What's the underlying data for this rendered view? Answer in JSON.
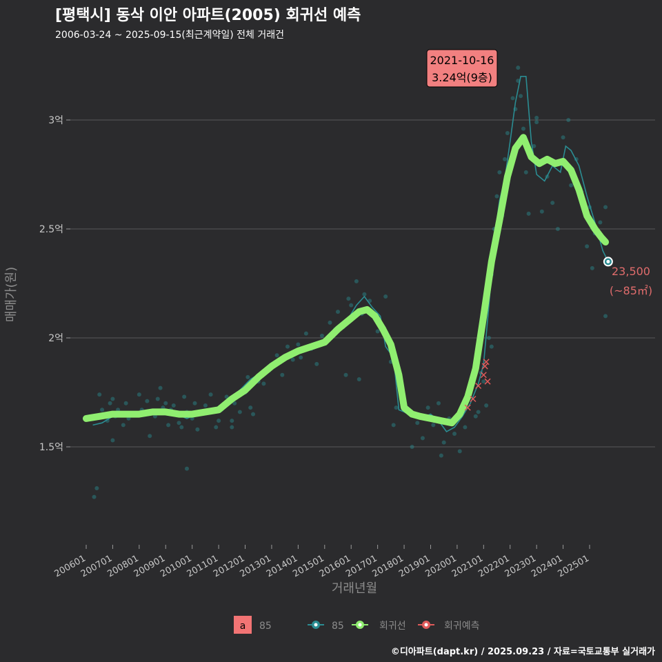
{
  "header": {
    "title": "[평택시] 동삭 이안 아파트(2005) 회귀선 예측",
    "subtitle": "2006-03-24 ~ 2025-09-15(최근계약일) 전체 거래건",
    "caption": "©디아파트(dapt.kr) / 2025.09.23 / 자료=국토교통부 실거래가"
  },
  "chart_data": {
    "type": "line",
    "xlabel": "거래년월",
    "ylabel": "매매가(원)",
    "x_ticks": [
      "200601",
      "200701",
      "200801",
      "200901",
      "201001",
      "201101",
      "201201",
      "201301",
      "201401",
      "201501",
      "201601",
      "201701",
      "201801",
      "201901",
      "202001",
      "202101",
      "202201",
      "202301",
      "202401",
      "202501"
    ],
    "y_ticks": [
      {
        "value": 15000,
        "label": "1.5억"
      },
      {
        "value": 20000,
        "label": "2억"
      },
      {
        "value": 25000,
        "label": "2.5억"
      },
      {
        "value": 30000,
        "label": "3억"
      }
    ],
    "ylim": [
      11000,
      34000
    ],
    "xlim": [
      2005.75,
      2026.0
    ],
    "grid": "horizontal",
    "legend_position": "bottom",
    "colors": {
      "area85": "#2b8d93",
      "regression": "#90ee70",
      "forecast": "#e05a5a",
      "badge": "#f28080"
    },
    "series": [
      {
        "name": "85",
        "kind": "line",
        "x": [
          2006.25,
          2006.6,
          2007.0,
          2007.5,
          2008.0,
          2008.5,
          2009.0,
          2009.4,
          2009.8,
          2010.2,
          2010.6,
          2011.0,
          2011.4,
          2011.8,
          2012.2,
          2012.6,
          2013.0,
          2013.4,
          2013.8,
          2014.2,
          2014.6,
          2015.0,
          2015.4,
          2015.8,
          2016.2,
          2016.5,
          2016.8,
          2017.1,
          2017.3,
          2017.6,
          2017.8,
          2018.0,
          2018.3,
          2018.6,
          2019.0,
          2019.3,
          2019.6,
          2019.9,
          2020.2,
          2020.5,
          2020.8,
          2021.0,
          2021.2,
          2021.4,
          2021.6,
          2021.8,
          2022.0,
          2022.2,
          2022.4,
          2022.6,
          2022.8,
          2023.0,
          2023.3,
          2023.6,
          2023.9,
          2024.1,
          2024.3,
          2024.6,
          2024.9,
          2025.2,
          2025.5,
          2025.7
        ],
        "y": [
          16000,
          16100,
          16400,
          16500,
          16500,
          16600,
          16700,
          16500,
          16300,
          16500,
          16600,
          16800,
          17200,
          17600,
          18100,
          18400,
          18700,
          19000,
          19200,
          19400,
          19500,
          19700,
          20200,
          20700,
          21500,
          21900,
          21400,
          21000,
          19600,
          19100,
          16700,
          16600,
          16400,
          16300,
          16500,
          16200,
          15700,
          15900,
          16400,
          17000,
          17900,
          18800,
          21500,
          24500,
          26300,
          27300,
          29000,
          30800,
          32000,
          32000,
          29000,
          27500,
          27200,
          27900,
          27600,
          28800,
          28600,
          27900,
          26500,
          25300,
          24000,
          23500
        ]
      },
      {
        "name": "회귀선",
        "kind": "line",
        "x": [
          2006.0,
          2006.5,
          2007.0,
          2007.5,
          2008.0,
          2008.5,
          2009.0,
          2009.5,
          2010.0,
          2010.5,
          2011.0,
          2011.5,
          2012.0,
          2012.5,
          2013.0,
          2013.5,
          2014.0,
          2014.5,
          2015.0,
          2015.5,
          2016.0,
          2016.3,
          2016.6,
          2016.9,
          2017.2,
          2017.5,
          2017.8,
          2018.0,
          2018.3,
          2018.6,
          2019.0,
          2019.4,
          2019.8,
          2020.1,
          2020.4,
          2020.7,
          2021.0,
          2021.3,
          2021.6,
          2021.9,
          2022.2,
          2022.5,
          2022.8,
          2023.1,
          2023.4,
          2023.7,
          2024.0,
          2024.3,
          2024.6,
          2024.9,
          2025.2,
          2025.45,
          2025.6
        ],
        "y": [
          16300,
          16400,
          16500,
          16500,
          16500,
          16600,
          16600,
          16500,
          16500,
          16600,
          16700,
          17200,
          17600,
          18200,
          18700,
          19100,
          19400,
          19600,
          19800,
          20400,
          20900,
          21200,
          21300,
          21000,
          20400,
          19700,
          18300,
          16800,
          16500,
          16400,
          16300,
          16200,
          16100,
          16500,
          17300,
          18600,
          21000,
          23500,
          25400,
          27400,
          28700,
          29200,
          28300,
          28000,
          28200,
          28000,
          28100,
          27700,
          26800,
          25600,
          25000,
          24600,
          24400
        ]
      },
      {
        "name": "회귀예측",
        "kind": "points",
        "x": [
          2020.4,
          2020.6,
          2020.8,
          2021.0,
          2021.05,
          2021.1,
          2021.15
        ],
        "y": [
          16800,
          17200,
          17800,
          18300,
          18700,
          18900,
          18000
        ]
      }
    ],
    "scatter_85": {
      "x": [
        2006.3,
        2006.5,
        2006.6,
        2006.8,
        2006.9,
        2007.0,
        2007.1,
        2007.2,
        2007.4,
        2007.5,
        2007.6,
        2007.8,
        2008.0,
        2008.1,
        2008.3,
        2008.4,
        2008.6,
        2008.7,
        2008.9,
        2009.0,
        2009.1,
        2009.2,
        2009.3,
        2009.5,
        2009.6,
        2009.7,
        2009.8,
        2010.0,
        2010.1,
        2010.2,
        2010.3,
        2010.5,
        2010.7,
        2010.9,
        2011.0,
        2011.1,
        2011.3,
        2011.5,
        2011.6,
        2011.8,
        2012.0,
        2012.1,
        2012.3,
        2012.5,
        2012.7,
        2012.9,
        2013.0,
        2013.2,
        2013.4,
        2013.6,
        2013.8,
        2014.0,
        2014.1,
        2014.3,
        2014.5,
        2014.7,
        2014.9,
        2015.0,
        2015.2,
        2015.4,
        2015.5,
        2015.7,
        2015.9,
        2016.0,
        2016.2,
        2016.4,
        2016.5,
        2016.7,
        2016.9,
        2017.0,
        2017.3,
        2017.5,
        2017.7,
        2018.0,
        2018.3,
        2018.5,
        2018.7,
        2018.9,
        2019.1,
        2019.3,
        2019.5,
        2019.7,
        2019.9,
        2020.1,
        2020.3,
        2020.5,
        2020.7,
        2020.9,
        2021.0,
        2021.1,
        2021.2,
        2021.3,
        2021.4,
        2021.5,
        2021.6,
        2021.7,
        2021.8,
        2021.9,
        2022.0,
        2022.1,
        2022.2,
        2022.3,
        2022.4,
        2022.5,
        2022.6,
        2022.7,
        2022.9,
        2023.0,
        2023.2,
        2023.4,
        2023.6,
        2023.8,
        2024.0,
        2024.2,
        2024.3,
        2024.5,
        2024.7,
        2024.9,
        2025.0,
        2025.2,
        2025.4,
        2025.6,
        2006.4,
        2007.0,
        2009.8,
        2010.3,
        2008.8,
        2011.5,
        2012.2,
        2014.0,
        2015.8,
        2016.3,
        2017.6,
        2019.4,
        2020.8,
        2021.3,
        2022.3,
        2023.0,
        2025.6,
        2025.1
      ],
      "y": [
        12700,
        17400,
        16700,
        16200,
        17000,
        17200,
        16400,
        16700,
        16000,
        17000,
        16300,
        16500,
        17400,
        16700,
        17100,
        15500,
        16400,
        17200,
        16800,
        17000,
        16000,
        16700,
        16900,
        16100,
        15900,
        17300,
        16600,
        16300,
        17000,
        15800,
        16600,
        16900,
        17400,
        15900,
        16200,
        16700,
        17300,
        16200,
        17000,
        16600,
        17500,
        18200,
        16500,
        18000,
        17900,
        18500,
        18700,
        19200,
        18300,
        19600,
        19000,
        19700,
        19100,
        20200,
        19500,
        18800,
        20100,
        19900,
        20700,
        20400,
        21200,
        20500,
        21800,
        21500,
        22600,
        21100,
        22000,
        21700,
        20900,
        20300,
        21900,
        18900,
        16800,
        16900,
        15000,
        16100,
        15400,
        16800,
        16000,
        17000,
        15200,
        16300,
        15600,
        14800,
        15900,
        17500,
        16400,
        18400,
        18000,
        16900,
        20000,
        22900,
        25000,
        26500,
        27600,
        25600,
        28200,
        29400,
        28000,
        31000,
        30500,
        32400,
        31100,
        29600,
        27600,
        25700,
        28800,
        29900,
        25800,
        27400,
        26200,
        25000,
        29200,
        30000,
        27000,
        28200,
        26700,
        24200,
        26000,
        24800,
        25300,
        26000,
        13100,
        15300,
        14000,
        16500,
        17700,
        15900,
        16800,
        19400,
        18300,
        18100,
        16000,
        14600,
        16600,
        19600,
        31800,
        30100,
        21000,
        23200
      ],
      "count_description": "individual transactions (dim teal dots)"
    },
    "latest_point": {
      "x": 2025.7,
      "y": 23500
    },
    "annotations": {
      "max_badge_line1": "2021-10-16",
      "max_badge_line2": "3.24억(9층)",
      "last_label_line1": "23,500",
      "last_label_line2": "(~85㎡)"
    },
    "legend": {
      "area_badge": "a",
      "area_label": "85",
      "items": [
        {
          "label": "85",
          "color": "#2b8d93"
        },
        {
          "label": "회귀선",
          "color": "#90ee70"
        },
        {
          "label": "회귀예측",
          "color": "#e05a5a"
        }
      ]
    }
  }
}
